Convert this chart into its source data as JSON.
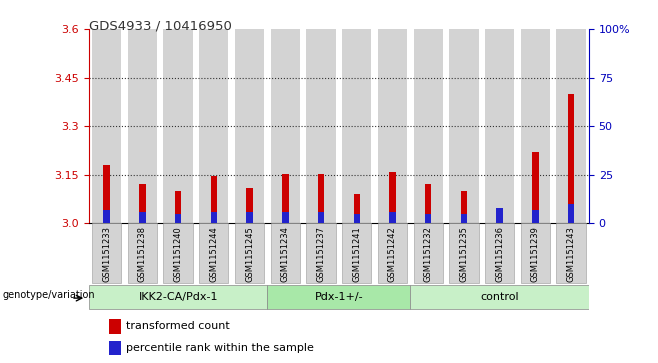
{
  "title": "GDS4933 / 10416950",
  "samples": [
    "GSM1151233",
    "GSM1151238",
    "GSM1151240",
    "GSM1151244",
    "GSM1151245",
    "GSM1151234",
    "GSM1151237",
    "GSM1151241",
    "GSM1151242",
    "GSM1151232",
    "GSM1151235",
    "GSM1151236",
    "GSM1151239",
    "GSM1151243"
  ],
  "red_values": [
    3.18,
    3.12,
    3.1,
    3.145,
    3.11,
    3.153,
    3.153,
    3.09,
    3.157,
    3.12,
    3.1,
    3.01,
    3.22,
    3.4
  ],
  "blue_values": [
    7,
    6,
    5,
    6,
    6,
    6,
    6,
    5,
    6,
    5,
    5,
    8,
    7,
    10
  ],
  "y_min": 3.0,
  "y_max": 3.6,
  "y_ticks_left": [
    3.0,
    3.15,
    3.3,
    3.45,
    3.6
  ],
  "y_ticks_right": [
    0,
    25,
    50,
    75,
    100
  ],
  "groups": [
    {
      "label": "IKK2-CA/Pdx-1",
      "start": 0,
      "end": 5
    },
    {
      "label": "Pdx-1+/-",
      "start": 5,
      "end": 9
    },
    {
      "label": "control",
      "start": 9,
      "end": 14
    }
  ],
  "group_colors": [
    "#c8f0c8",
    "#a8e8a8",
    "#c8f0c8"
  ],
  "bar_bg": "#d3d3d3",
  "red_color": "#cc0000",
  "blue_color": "#2222cc",
  "legend_label_red": "transformed count",
  "legend_label_blue": "percentile rank within the sample",
  "genotype_label": "genotype/variation",
  "title_color": "#333333",
  "dotted_line_color": "#333333",
  "right_axis_color": "#0000bb",
  "left_axis_color": "#cc0000"
}
